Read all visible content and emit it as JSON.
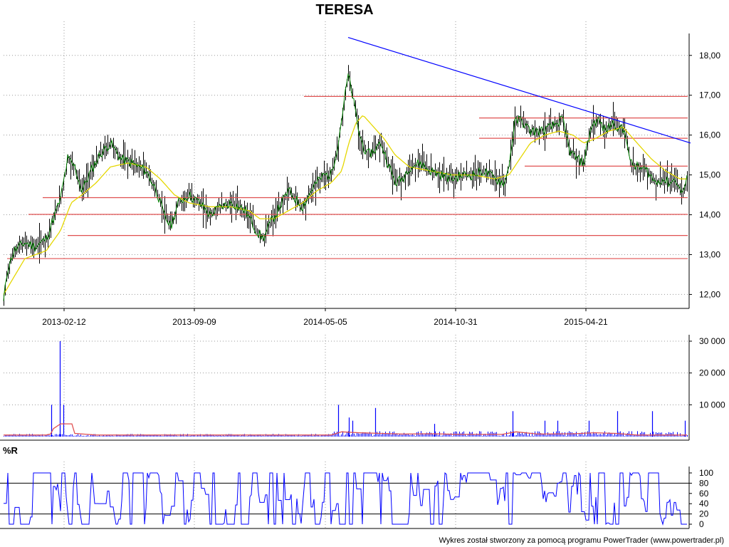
{
  "chart_data": [
    {
      "type": "ohlc",
      "title": "TERESA",
      "x_ticks": [
        "2013-02-12",
        "2013-09-09",
        "2014-05-05",
        "2014-10-31",
        "2015-04-21"
      ],
      "y_ticks": [
        "12,00",
        "13,00",
        "14,00",
        "15,00",
        "16,00",
        "17,00",
        "18,00"
      ],
      "ylim": [
        11.65,
        18.55
      ],
      "grid": true,
      "close_series": [
        [
          0,
          11.8
        ],
        [
          5,
          12.6
        ],
        [
          15,
          13.1
        ],
        [
          30,
          13.3
        ],
        [
          45,
          13.2
        ],
        [
          60,
          13.4
        ],
        [
          80,
          14.4
        ],
        [
          90,
          15.4
        ],
        [
          100,
          15.2
        ],
        [
          110,
          14.6
        ],
        [
          120,
          15.0
        ],
        [
          135,
          15.5
        ],
        [
          150,
          15.8
        ],
        [
          165,
          15.4
        ],
        [
          180,
          15.3
        ],
        [
          200,
          15.1
        ],
        [
          215,
          14.6
        ],
        [
          225,
          14.0
        ],
        [
          235,
          13.7
        ],
        [
          245,
          14.3
        ],
        [
          260,
          14.5
        ],
        [
          275,
          14.3
        ],
        [
          290,
          14.0
        ],
        [
          305,
          14.2
        ],
        [
          320,
          14.3
        ],
        [
          340,
          14.1
        ],
        [
          355,
          13.6
        ],
        [
          365,
          13.4
        ],
        [
          375,
          13.8
        ],
        [
          385,
          14.1
        ],
        [
          400,
          14.6
        ],
        [
          410,
          14.4
        ],
        [
          420,
          14.2
        ],
        [
          435,
          14.7
        ],
        [
          450,
          15.0
        ],
        [
          460,
          15.0
        ],
        [
          470,
          15.8
        ],
        [
          478,
          16.8
        ],
        [
          484,
          17.5
        ],
        [
          490,
          17.0
        ],
        [
          500,
          16.0
        ],
        [
          510,
          15.5
        ],
        [
          520,
          15.6
        ],
        [
          530,
          15.8
        ],
        [
          540,
          15.3
        ],
        [
          550,
          14.8
        ],
        [
          560,
          14.9
        ],
        [
          570,
          15.2
        ],
        [
          585,
          15.3
        ],
        [
          600,
          15.1
        ],
        [
          615,
          15.0
        ],
        [
          630,
          14.9
        ],
        [
          645,
          15.0
        ],
        [
          660,
          15.0
        ],
        [
          675,
          15.1
        ],
        [
          690,
          14.9
        ],
        [
          705,
          14.8
        ],
        [
          712,
          15.5
        ],
        [
          718,
          16.3
        ],
        [
          725,
          16.4
        ],
        [
          740,
          16.1
        ],
        [
          755,
          16.1
        ],
        [
          770,
          16.2
        ],
        [
          785,
          16.4
        ],
        [
          795,
          15.6
        ],
        [
          805,
          15.4
        ],
        [
          815,
          15.3
        ],
        [
          825,
          16.2
        ],
        [
          835,
          16.4
        ],
        [
          845,
          16.1
        ],
        [
          855,
          16.3
        ],
        [
          865,
          16.2
        ],
        [
          875,
          16.0
        ],
        [
          880,
          15.3
        ],
        [
          890,
          15.2
        ],
        [
          905,
          15.1
        ],
        [
          915,
          14.8
        ],
        [
          925,
          14.9
        ],
        [
          935,
          14.8
        ],
        [
          945,
          14.9
        ],
        [
          950,
          14.6
        ],
        [
          955,
          14.6
        ],
        [
          960,
          14.9
        ]
      ],
      "ma_series": [
        [
          0,
          12.0
        ],
        [
          30,
          12.9
        ],
        [
          60,
          13.1
        ],
        [
          80,
          13.6
        ],
        [
          95,
          14.3
        ],
        [
          110,
          14.5
        ],
        [
          130,
          14.8
        ],
        [
          150,
          15.2
        ],
        [
          175,
          15.3
        ],
        [
          200,
          15.2
        ],
        [
          220,
          14.9
        ],
        [
          240,
          14.5
        ],
        [
          260,
          14.3
        ],
        [
          290,
          14.2
        ],
        [
          320,
          14.2
        ],
        [
          345,
          14.1
        ],
        [
          360,
          13.9
        ],
        [
          380,
          13.9
        ],
        [
          400,
          14.1
        ],
        [
          420,
          14.3
        ],
        [
          440,
          14.6
        ],
        [
          460,
          14.8
        ],
        [
          475,
          15.1
        ],
        [
          485,
          15.8
        ],
        [
          495,
          16.3
        ],
        [
          505,
          16.5
        ],
        [
          520,
          16.2
        ],
        [
          535,
          15.9
        ],
        [
          550,
          15.5
        ],
        [
          570,
          15.2
        ],
        [
          600,
          15.1
        ],
        [
          630,
          15.0
        ],
        [
          660,
          15.0
        ],
        [
          690,
          14.9
        ],
        [
          710,
          15.0
        ],
        [
          725,
          15.4
        ],
        [
          740,
          15.8
        ],
        [
          760,
          16.0
        ],
        [
          780,
          16.1
        ],
        [
          800,
          16.0
        ],
        [
          815,
          15.8
        ],
        [
          830,
          15.9
        ],
        [
          850,
          16.1
        ],
        [
          870,
          16.2
        ],
        [
          880,
          16.0
        ],
        [
          895,
          15.7
        ],
        [
          910,
          15.4
        ],
        [
          930,
          15.1
        ],
        [
          950,
          14.9
        ],
        [
          960,
          14.9
        ]
      ],
      "trendline": [
        [
          484,
          18.45
        ],
        [
          965,
          15.8
        ]
      ],
      "horizontal_lines": [
        {
          "y": 16.97,
          "from": 422
        },
        {
          "y": 16.43,
          "from": 668
        },
        {
          "y": 15.92,
          "from": 668
        },
        {
          "y": 15.22,
          "from": 732
        },
        {
          "y": 14.43,
          "from": 55
        },
        {
          "y": 14.01,
          "from": 35
        },
        {
          "y": 13.48,
          "from": 90
        },
        {
          "y": 12.9,
          "from": 5
        }
      ],
      "colors": {
        "close": "#008000",
        "ma": "#e5d700",
        "trendline": "#0000ff",
        "levels": "#e05050",
        "bars": "#000000"
      }
    },
    {
      "type": "bar",
      "y_ticks": [
        "10 000",
        "20 000",
        "30 000"
      ],
      "ylim": [
        0,
        30000
      ],
      "spikes": [
        [
          67,
          10000
        ],
        [
          79,
          30000
        ],
        [
          84,
          10000
        ],
        [
          470,
          10000
        ],
        [
          485,
          6000
        ],
        [
          490,
          5000
        ],
        [
          522,
          9000
        ],
        [
          605,
          4000
        ],
        [
          715,
          8000
        ],
        [
          760,
          5000
        ],
        [
          778,
          5000
        ],
        [
          822,
          5000
        ],
        [
          862,
          8000
        ],
        [
          911,
          8000
        ],
        [
          957,
          5000
        ]
      ],
      "avg_line": [
        [
          0,
          500
        ],
        [
          60,
          500
        ],
        [
          66,
          800
        ],
        [
          70,
          2500
        ],
        [
          80,
          4000
        ],
        [
          96,
          4000
        ],
        [
          100,
          1000
        ],
        [
          130,
          500
        ],
        [
          460,
          500
        ],
        [
          475,
          1500
        ],
        [
          500,
          1200
        ],
        [
          530,
          1000
        ],
        [
          560,
          800
        ],
        [
          600,
          900
        ],
        [
          640,
          700
        ],
        [
          700,
          700
        ],
        [
          720,
          1500
        ],
        [
          750,
          800
        ],
        [
          800,
          900
        ],
        [
          830,
          1200
        ],
        [
          860,
          1000
        ],
        [
          890,
          500
        ],
        [
          960,
          500
        ]
      ],
      "colors": {
        "bars": "#0000ff",
        "avg": "#e05050"
      }
    },
    {
      "type": "line",
      "title": "%R",
      "y_ticks": [
        "0",
        "20",
        "40",
        "60",
        "80",
        "100"
      ],
      "ylim": [
        0,
        100
      ],
      "bands": [
        20,
        80
      ],
      "colors": {
        "line": "#0000ff",
        "bands": "#000000"
      }
    }
  ],
  "footer": "Wykres został stworzony za pomocą programu PowerTrader (www.powertrader.pl)"
}
